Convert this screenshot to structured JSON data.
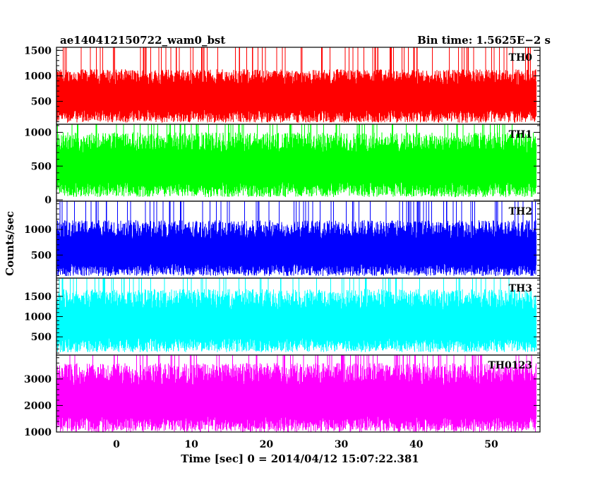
{
  "chart_data": {
    "type": "line",
    "title": "ae140412150722_wam0_bst",
    "subtitle": "Bin time: 1.5625E−2 s",
    "xlabel": "Time [sec] 0 = 2014/04/12 15:07:22.381",
    "ylabel": "Counts/sec",
    "xlim": [
      -8,
      56.5
    ],
    "x_ticks": [
      0,
      10,
      20,
      30,
      40,
      50
    ],
    "x_range": [
      -8,
      56
    ],
    "bin_time": 0.015625,
    "grid": false,
    "panels": [
      {
        "name": "TH0",
        "color": "#ff0000",
        "ylim": [
          50,
          1560
        ],
        "ticks": [
          500,
          1000,
          1500
        ],
        "mean": 650,
        "amplitude": 480,
        "min": 80
      },
      {
        "name": "TH1",
        "color": "#00ff00",
        "ylim": [
          -20,
          1120
        ],
        "ticks": [
          0,
          500,
          1000
        ],
        "mean": 540,
        "amplitude": 460,
        "min": 40
      },
      {
        "name": "TH2",
        "color": "#0000ff",
        "ylim": [
          50,
          1550
        ],
        "ticks": [
          500,
          1000
        ],
        "mean": 620,
        "amplitude": 560,
        "min": 90
      },
      {
        "name": "TH3",
        "color": "#00ffff",
        "ylim": [
          50,
          1950
        ],
        "ticks": [
          500,
          1000,
          1500
        ],
        "mean": 900,
        "amplitude": 780,
        "min": 120
      },
      {
        "name": "TH0123",
        "color": "#ff00ff",
        "ylim": [
          1000,
          3900
        ],
        "ticks": [
          1000,
          2000,
          3000
        ],
        "mean": 2300,
        "amplitude": 1300,
        "min": 1000
      }
    ]
  }
}
